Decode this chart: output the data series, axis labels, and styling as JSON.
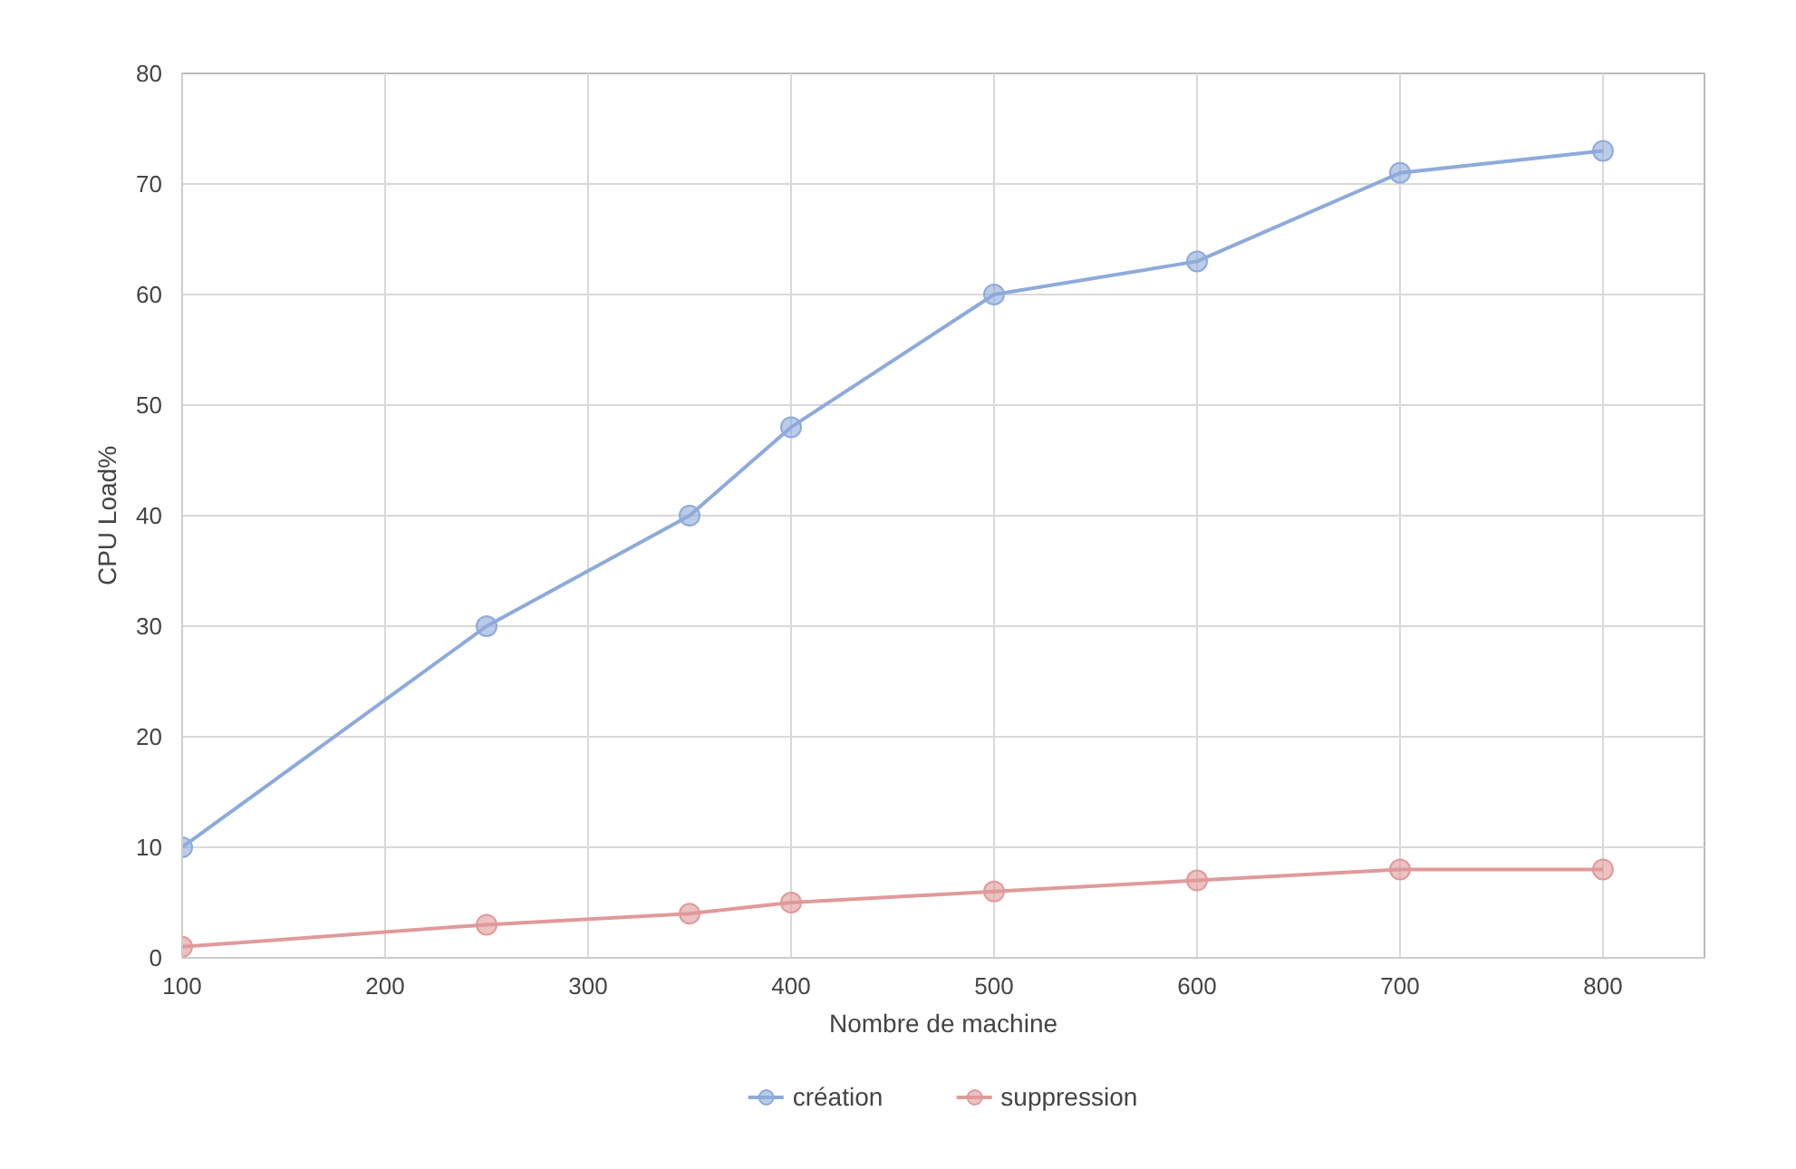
{
  "chart_data": {
    "type": "line",
    "xlabel": "Nombre de machine",
    "ylabel": "CPU Load%",
    "x": [
      100,
      250,
      350,
      400,
      500,
      600,
      700,
      800
    ],
    "series": [
      {
        "name": "création",
        "color": "#8eaadb",
        "values": [
          10,
          30,
          40,
          48,
          60,
          63,
          71,
          73
        ]
      },
      {
        "name": "suppression",
        "color": "#e09a9a",
        "values": [
          1,
          3,
          4,
          5,
          6,
          7,
          8,
          8
        ]
      }
    ],
    "xlim": [
      100,
      850
    ],
    "xticks": [
      100,
      200,
      300,
      400,
      500,
      600,
      700,
      800
    ],
    "ylim": [
      0,
      80
    ],
    "yticks": [
      0,
      10,
      20,
      30,
      40,
      50,
      60,
      70,
      80
    ],
    "grid": true,
    "legend": "bottom",
    "marker": "circle",
    "line_style": "solid"
  }
}
